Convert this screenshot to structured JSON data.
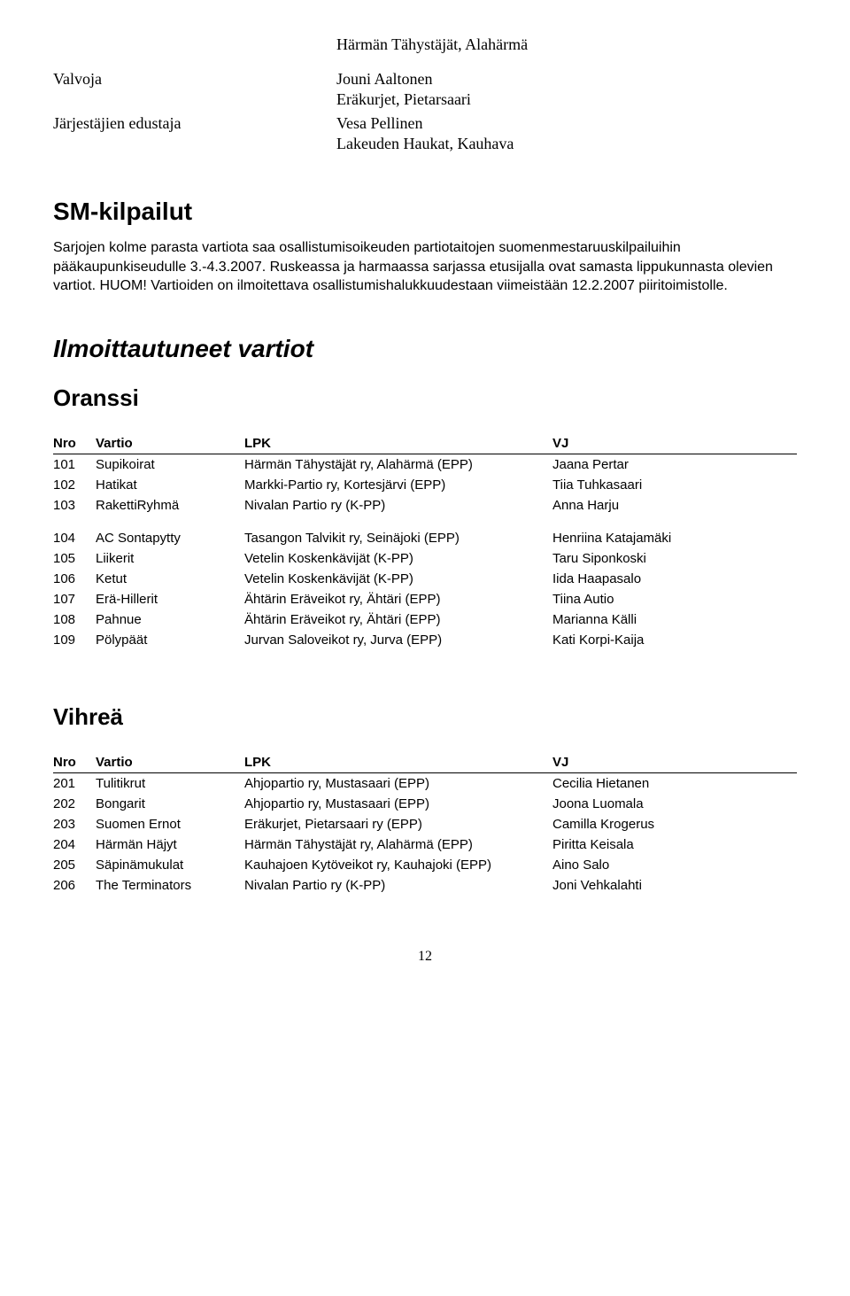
{
  "top_line": "Härmän Tähystäjät, Alahärmä",
  "roles": [
    {
      "label": "Valvoja",
      "lines": [
        "Jouni Aaltonen",
        "Eräkurjet, Pietarsaari"
      ]
    },
    {
      "label": "Järjestäjien edustaja",
      "lines": [
        "Vesa Pellinen",
        "Lakeuden Haukat, Kauhava"
      ]
    }
  ],
  "sm_heading": "SM-kilpailut",
  "sm_paragraph": "Sarjojen kolme parasta vartiota saa osallistumisoikeuden partiotaitojen suomenmestaruuskilpailuihin pääkaupunkiseudulle 3.-4.3.2007. Ruskeassa ja harmaassa sarjassa etusijalla ovat samasta lippukunnasta olevien vartiot. HUOM! Vartioiden on ilmoitettava osallistumishalukkuudestaan viimeistään 12.2.2007 piiritoimistolle.",
  "ilmo_heading": "Ilmoittautuneet vartiot",
  "table_headers": {
    "nro": "Nro",
    "vartio": "Vartio",
    "lpk": "LPK",
    "vj": "VJ"
  },
  "sections": [
    {
      "title": "Oranssi",
      "rows": [
        {
          "nro": "101",
          "vartio": "Supikoirat",
          "lpk": "Härmän Tähystäjät ry, Alahärmä (EPP)",
          "vj": "Jaana Pertar"
        },
        {
          "nro": "102",
          "vartio": "Hatikat",
          "lpk": "Markki-Partio ry, Kortesjärvi (EPP)",
          "vj": "Tiia Tuhkasaari"
        },
        {
          "nro": "103",
          "vartio": "RakettiRyhmä",
          "lpk": "Nivalan Partio ry (K-PP)",
          "vj": "Anna Harju",
          "gap_after": true
        },
        {
          "nro": "104",
          "vartio": "AC Sontapytty",
          "lpk": "Tasangon Talvikit ry, Seinäjoki (EPP)",
          "vj": "Henriina Katajamäki"
        },
        {
          "nro": "105",
          "vartio": "Liikerit",
          "lpk": "Vetelin Koskenkävijät (K-PP)",
          "vj": "Taru Siponkoski"
        },
        {
          "nro": "106",
          "vartio": "Ketut",
          "lpk": "Vetelin Koskenkävijät (K-PP)",
          "vj": "Iida Haapasalo"
        },
        {
          "nro": "107",
          "vartio": "Erä-Hillerit",
          "lpk": "Ähtärin Eräveikot ry, Ähtäri (EPP)",
          "vj": "Tiina Autio"
        },
        {
          "nro": "108",
          "vartio": "Pahnue",
          "lpk": "Ähtärin Eräveikot ry, Ähtäri (EPP)",
          "vj": "Marianna Källi"
        },
        {
          "nro": "109",
          "vartio": "Pölypäät",
          "lpk": "Jurvan Saloveikot ry, Jurva (EPP)",
          "vj": "Kati Korpi-Kaija"
        }
      ]
    },
    {
      "title": "Vihreä",
      "rows": [
        {
          "nro": "201",
          "vartio": "Tulitikrut",
          "lpk": "Ahjopartio ry, Mustasaari (EPP)",
          "vj": "Cecilia Hietanen"
        },
        {
          "nro": "202",
          "vartio": "Bongarit",
          "lpk": "Ahjopartio ry, Mustasaari (EPP)",
          "vj": "Joona Luomala"
        },
        {
          "nro": "203",
          "vartio": "Suomen Ernot",
          "lpk": "Eräkurjet, Pietarsaari ry (EPP)",
          "vj": "Camilla Krogerus"
        },
        {
          "nro": "204",
          "vartio": "Härmän Häjyt",
          "lpk": "Härmän Tähystäjät ry, Alahärmä (EPP)",
          "vj": "Piritta Keisala"
        },
        {
          "nro": "205",
          "vartio": "Säpinämukulat",
          "lpk": "Kauhajoen Kytöveikot ry, Kauhajoki (EPP)",
          "vj": "Aino Salo"
        },
        {
          "nro": "206",
          "vartio": "The Terminators",
          "lpk": "Nivalan Partio ry (K-PP)",
          "vj": "Joni Vehkalahti"
        }
      ]
    }
  ],
  "page_number": "12"
}
